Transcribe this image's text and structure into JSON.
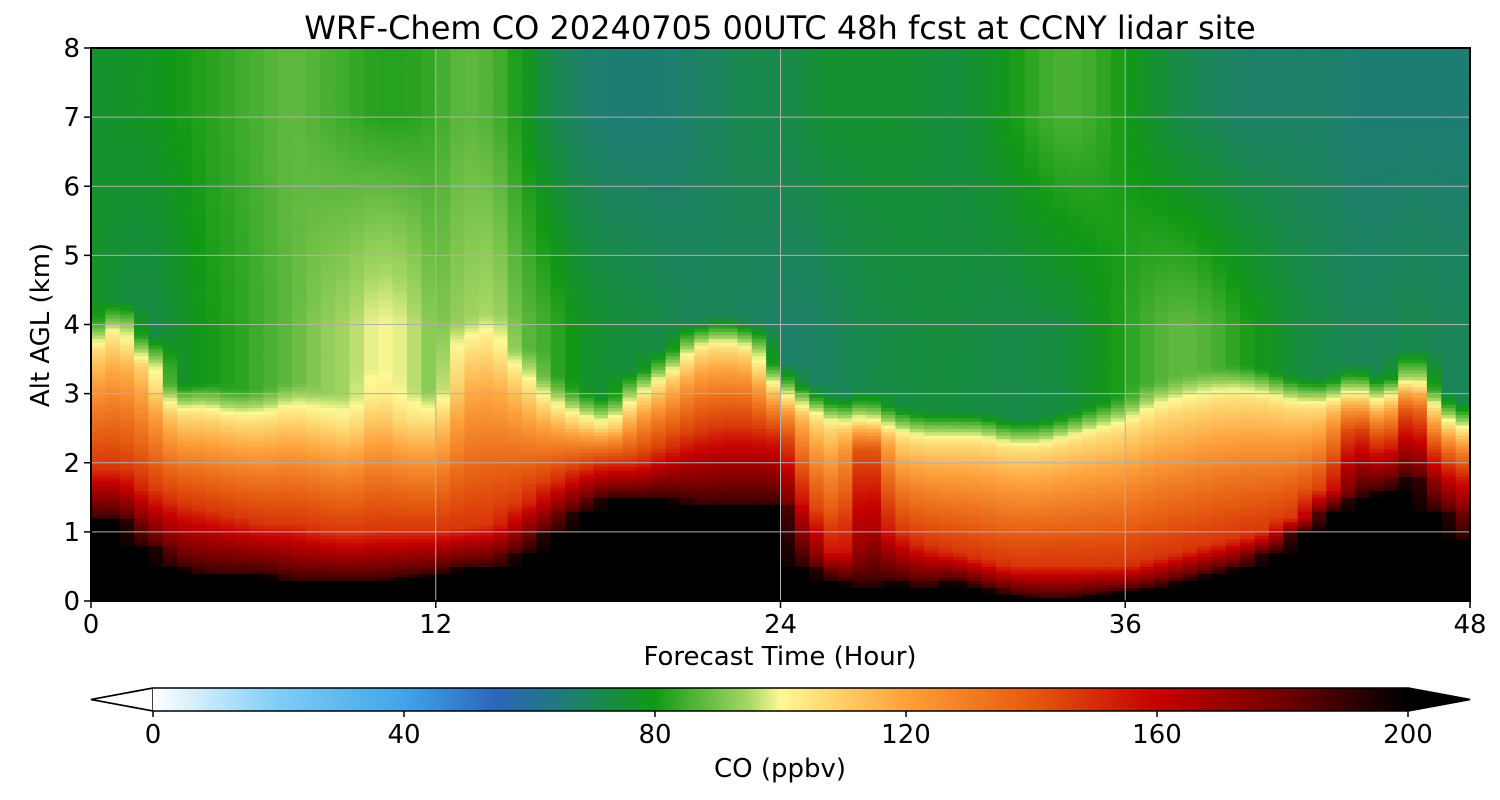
{
  "chart_data": {
    "type": "heatmap",
    "title": "WRF-Chem CO  20240705 00UTC 48h fcst at CCNY lidar site",
    "xlabel": "Forecast Time (Hour)",
    "ylabel": "Alt AGL (km)",
    "xlim": [
      0,
      48
    ],
    "ylim": [
      0,
      8
    ],
    "x_ticks": [
      "0",
      "12",
      "24",
      "36",
      "48"
    ],
    "y_ticks": [
      "0",
      "1",
      "2",
      "3",
      "4",
      "5",
      "6",
      "7",
      "8"
    ],
    "grid": true,
    "colorbar": {
      "label": "CO  (ppbv)",
      "range": [
        0,
        200
      ],
      "extend": "both",
      "ticks": [
        "0",
        "40",
        "80",
        "120",
        "160",
        "200"
      ],
      "stops": [
        {
          "value": 0,
          "color": "#ffffff"
        },
        {
          "value": 20,
          "color": "#7fcdf5"
        },
        {
          "value": 40,
          "color": "#3fa5e8"
        },
        {
          "value": 55,
          "color": "#2c64b8"
        },
        {
          "value": 65,
          "color": "#1f7b7a"
        },
        {
          "value": 80,
          "color": "#129915"
        },
        {
          "value": 95,
          "color": "#a8d765"
        },
        {
          "value": 100,
          "color": "#fdf995"
        },
        {
          "value": 120,
          "color": "#fda13c"
        },
        {
          "value": 140,
          "color": "#e45a10"
        },
        {
          "value": 160,
          "color": "#c60000"
        },
        {
          "value": 180,
          "color": "#700000"
        },
        {
          "value": 200,
          "color": "#000000"
        }
      ]
    },
    "x_hours": [
      0,
      1,
      2,
      3,
      4,
      5,
      6,
      7,
      8,
      9,
      10,
      11,
      12,
      13,
      14,
      15,
      16,
      17,
      18,
      19,
      20,
      21,
      22,
      23,
      24,
      25,
      26,
      27,
      28,
      29,
      30,
      31,
      32,
      33,
      34,
      35,
      36,
      37,
      38,
      39,
      40,
      41,
      42,
      43,
      44,
      45,
      46,
      47,
      48
    ],
    "height_km": [
      0,
      0.25,
      0.5,
      0.75,
      1,
      1.25,
      1.5,
      1.75,
      2,
      2.25,
      2.5,
      2.75,
      3,
      3.25,
      3.5,
      3.75,
      4,
      4.5,
      5,
      5.5,
      6,
      6.5,
      7,
      7.5,
      8
    ],
    "pbl_top_km": [
      3.6,
      3.9,
      3.4,
      2.7,
      2.7,
      2.6,
      2.6,
      2.7,
      2.6,
      2.5,
      2.9,
      2.6,
      2.6,
      3.6,
      3.7,
      3.2,
      2.8,
      2.6,
      2.5,
      2.9,
      3.2,
      3.6,
      3.7,
      3.6,
      3.0,
      2.7,
      2.5,
      2.6,
      2.4,
      2.3,
      2.3,
      2.3,
      2.2,
      2.2,
      2.3,
      2.4,
      2.5,
      2.7,
      2.8,
      2.9,
      2.95,
      2.9,
      2.8,
      2.8,
      3.0,
      2.8,
      3.2,
      2.6,
      2.4
    ],
    "black_layer_top_km": [
      1.2,
      1.2,
      0.8,
      0.5,
      0.4,
      0.4,
      0.4,
      0.3,
      0.3,
      0.3,
      0.3,
      0.35,
      0.4,
      0.5,
      0.5,
      0.7,
      1.0,
      1.3,
      1.5,
      1.5,
      1.5,
      1.4,
      1.4,
      1.4,
      1.4,
      0.5,
      0.3,
      0.2,
      0.3,
      0.2,
      0.3,
      0.2,
      0.1,
      0.05,
      0.05,
      0.1,
      0.15,
      0.2,
      0.3,
      0.4,
      0.5,
      0.7,
      1.0,
      1.3,
      1.5,
      1.6,
      1.8,
      1.3,
      0.9
    ],
    "red_layer_top_km": [
      1.9,
      1.9,
      1.6,
      1.4,
      1.3,
      1.2,
      1.1,
      1.1,
      1.0,
      0.95,
      1.0,
      1.0,
      1.0,
      1.05,
      1.1,
      1.4,
      1.7,
      1.9,
      2.0,
      2.0,
      2.2,
      2.4,
      2.5,
      2.5,
      2.4,
      1.3,
      0.7,
      2.2,
      1.0,
      0.8,
      0.7,
      0.6,
      0.5,
      0.5,
      0.5,
      0.5,
      0.5,
      0.6,
      0.7,
      0.8,
      0.9,
      1.0,
      1.2,
      1.6,
      2.5,
      2.2,
      2.8,
      2.0,
      1.8
    ],
    "upper_co_ppbv_at_4km": [
      78,
      74,
      72,
      76,
      80,
      82,
      85,
      88,
      92,
      95,
      100,
      98,
      90,
      94,
      96,
      88,
      84,
      78,
      75,
      74,
      72,
      70,
      70,
      69,
      68,
      68,
      70,
      72,
      73,
      74,
      74,
      73,
      72,
      73,
      74,
      78,
      82,
      86,
      88,
      86,
      82,
      78,
      74,
      72,
      70,
      70,
      72,
      70,
      70
    ],
    "upper_co_ppbv_at_7km": [
      76,
      77,
      78,
      80,
      82,
      84,
      86,
      88,
      86,
      84,
      82,
      82,
      84,
      88,
      86,
      80,
      72,
      68,
      66,
      66,
      66,
      68,
      70,
      72,
      72,
      74,
      76,
      76,
      76,
      75,
      74,
      76,
      80,
      84,
      86,
      84,
      80,
      76,
      72,
      70,
      68,
      68,
      68,
      68,
      66,
      66,
      66,
      66,
      66
    ]
  }
}
